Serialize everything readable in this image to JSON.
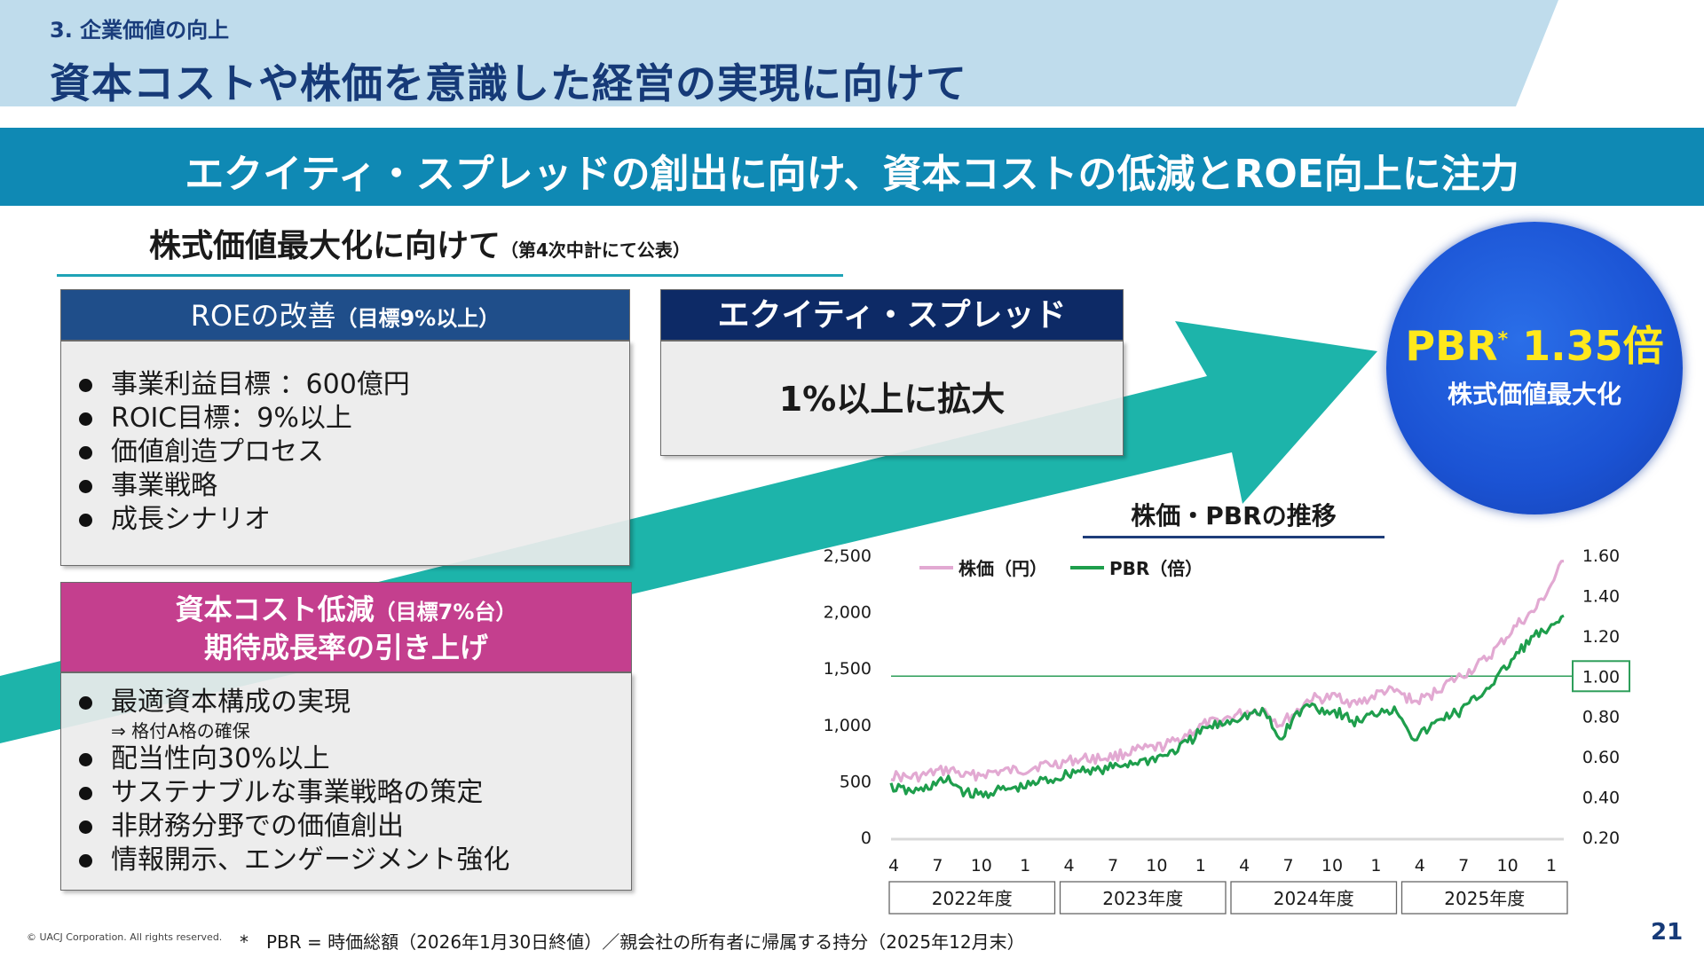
{
  "header": {
    "section_label": "3. 企業価値の向上",
    "title": "資本コストや株価を意識した経営の実現に向けて"
  },
  "banner": "エクイティ・スプレッドの創出に向け、資本コストの低減とROE向上に注力",
  "sub_heading": {
    "main": "株式価値最大化に向けて",
    "note": "（第4次中計にて公表）"
  },
  "roe_box": {
    "title": "ROEの改善",
    "title_note": "（目標9%以上）",
    "items": [
      "事業利益目標 ：600億円",
      "ROIC目標：9%以上",
      "価値創造プロセス",
      "事業戦略",
      "成長シナリオ"
    ]
  },
  "spread_box": {
    "title": "エクイティ・スプレッド",
    "body": "1%以上に拡大"
  },
  "cost_box": {
    "title_line1": "資本コスト低減",
    "title_note": "（目標7%台）",
    "title_line2": "期待成長率の引き上げ",
    "item1": "最適資本構成の実現",
    "item1_note": "⇒ 格付A格の確保",
    "items": [
      "配当性向30%以上",
      "サステナブルな事業戦略の策定",
      "非財務分野での価値創出",
      "情報開示、エンゲージメント強化"
    ]
  },
  "pbr_circle": {
    "main": "PBR",
    "mark": "*",
    "value": "1.35倍",
    "sub": "株式価値最大化"
  },
  "chart_title": "株価・PBRの推移",
  "chart_data": {
    "type": "line",
    "x": [
      "2022-04",
      "2022-05",
      "2022-06",
      "2022-07",
      "2022-08",
      "2022-09",
      "2022-10",
      "2022-11",
      "2022-12",
      "2023-01",
      "2023-02",
      "2023-03",
      "2023-04",
      "2023-05",
      "2023-06",
      "2023-07",
      "2023-08",
      "2023-09",
      "2023-10",
      "2023-11",
      "2023-12",
      "2024-01",
      "2024-02",
      "2024-03",
      "2024-04",
      "2024-05",
      "2024-06",
      "2024-07",
      "2024-08",
      "2024-09",
      "2024-10",
      "2024-11",
      "2024-12",
      "2025-01",
      "2025-02",
      "2025-03",
      "2025-04",
      "2025-05",
      "2025-06",
      "2025-07",
      "2025-08",
      "2025-09",
      "2025-10",
      "2025-11",
      "2025-12",
      "2026-01"
    ],
    "series": [
      {
        "name": "株価（円）",
        "axis": "left",
        "color": "#e2a9d2",
        "values": [
          550,
          530,
          540,
          580,
          600,
          540,
          560,
          580,
          590,
          600,
          640,
          650,
          680,
          700,
          700,
          720,
          760,
          780,
          800,
          850,
          930,
          1000,
          1030,
          1080,
          1120,
          1130,
          1000,
          1100,
          1230,
          1230,
          1250,
          1180,
          1230,
          1300,
          1280,
          1200,
          1250,
          1350,
          1420,
          1500,
          1600,
          1750,
          1900,
          2000,
          2200,
          2450
        ]
      },
      {
        "name": "PBR（倍）",
        "axis": "right",
        "color": "#1e9e4c",
        "values": [
          0.45,
          0.43,
          0.43,
          0.47,
          0.48,
          0.42,
          0.41,
          0.43,
          0.44,
          0.45,
          0.48,
          0.49,
          0.52,
          0.54,
          0.53,
          0.55,
          0.57,
          0.58,
          0.6,
          0.63,
          0.68,
          0.74,
          0.76,
          0.79,
          0.81,
          0.82,
          0.68,
          0.8,
          0.86,
          0.83,
          0.82,
          0.77,
          0.8,
          0.84,
          0.82,
          0.69,
          0.74,
          0.8,
          0.82,
          0.88,
          0.95,
          1.03,
          1.12,
          1.2,
          1.22,
          1.3
        ]
      }
    ],
    "y_left": {
      "ylim": [
        0,
        2500
      ],
      "ticks": [
        "0",
        "500",
        "1,000",
        "1,500",
        "2,000",
        "2,500"
      ]
    },
    "y_right": {
      "ylim": [
        0.2,
        1.6
      ],
      "ticks": [
        "0.20",
        "0.40",
        "0.60",
        "0.80",
        "1.00",
        "1.20",
        "1.40",
        "1.60"
      ]
    },
    "reference_line": {
      "value": 1.0,
      "label": "1.00",
      "color": "#2e9e5a"
    },
    "month_ticks": [
      "4",
      "7",
      "10",
      "1",
      "4",
      "7",
      "10",
      "1",
      "4",
      "7",
      "10",
      "1",
      "4",
      "7",
      "10",
      "1"
    ],
    "fiscal_years": [
      "2022年度",
      "2023年度",
      "2024年度",
      "2025年度"
    ],
    "legend": "top-left"
  },
  "footer": {
    "copyright": "© UACJ Corporation. All rights reserved.",
    "footnote": "*　PBR = 時価総額（2026年1月30日終値）／親会社の所有者に帰属する持分（2025年12月末）",
    "page": "21"
  },
  "colors": {
    "banner": "#0f89b4",
    "arrow": "#18b3a8",
    "roe_head": "#1f4e8a",
    "spread_head": "#0d2a66",
    "cost_head": "#c43f8e",
    "circle": "#1b53d4",
    "pbr_text": "#ffe81c"
  }
}
